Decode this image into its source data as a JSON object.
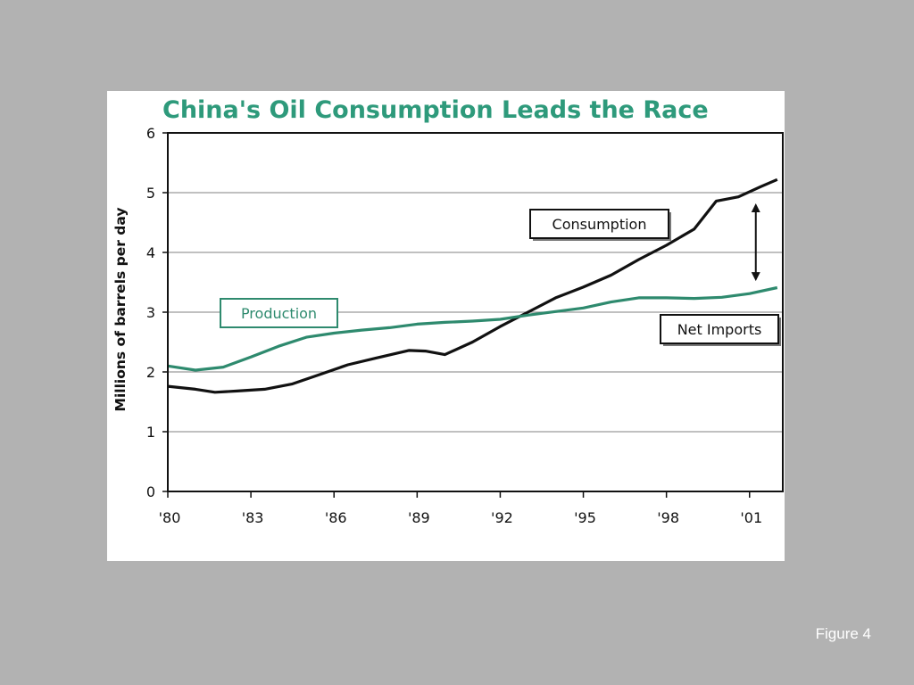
{
  "slide": {
    "caption": "Figure 4"
  },
  "colors": {
    "background": "#b2b2b2",
    "title": "#2e9a7b",
    "consumption": "#111111",
    "production": "#2e8a6e",
    "gridline": "#9a9a9a"
  },
  "chart_data": {
    "type": "line",
    "title": "China's Oil Consumption Leads the Race",
    "ylabel": "Millions of barrels per day",
    "xlabel": "",
    "ylim": [
      0,
      6
    ],
    "xlim": [
      1980,
      2002.2
    ],
    "yticks": [
      "0",
      "1",
      "2",
      "3",
      "4",
      "5",
      "6"
    ],
    "xticks": [
      {
        "year": 1980,
        "label": "'80"
      },
      {
        "year": 1983,
        "label": "'83"
      },
      {
        "year": 1986,
        "label": "'86"
      },
      {
        "year": 1989,
        "label": "'89"
      },
      {
        "year": 1992,
        "label": "'92"
      },
      {
        "year": 1995,
        "label": "'95"
      },
      {
        "year": 1998,
        "label": "'98"
      },
      {
        "year": 2001,
        "label": "'01"
      }
    ],
    "grid": "horizontal",
    "series": [
      {
        "name": "Consumption",
        "color": "#111111",
        "points": [
          [
            1980,
            1.76
          ],
          [
            1981,
            1.71
          ],
          [
            1981.7,
            1.66
          ],
          [
            1982.5,
            1.68
          ],
          [
            1983.5,
            1.71
          ],
          [
            1984.5,
            1.8
          ],
          [
            1985.5,
            1.96
          ],
          [
            1986.5,
            2.12
          ],
          [
            1987.5,
            2.23
          ],
          [
            1988.7,
            2.36
          ],
          [
            1989.3,
            2.35
          ],
          [
            1990,
            2.29
          ],
          [
            1991,
            2.5
          ],
          [
            1992,
            2.76
          ],
          [
            1993,
            3.0
          ],
          [
            1994,
            3.24
          ],
          [
            1995,
            3.42
          ],
          [
            1996,
            3.62
          ],
          [
            1997,
            3.88
          ],
          [
            1998,
            4.12
          ],
          [
            1999,
            4.39
          ],
          [
            1999.8,
            4.86
          ],
          [
            2000.6,
            4.93
          ],
          [
            2001.4,
            5.1
          ],
          [
            2002,
            5.22
          ]
        ]
      },
      {
        "name": "Production",
        "color": "#2e8a6e",
        "points": [
          [
            1980,
            2.1
          ],
          [
            1981,
            2.03
          ],
          [
            1982,
            2.08
          ],
          [
            1983,
            2.25
          ],
          [
            1984,
            2.43
          ],
          [
            1985,
            2.58
          ],
          [
            1986,
            2.65
          ],
          [
            1987,
            2.7
          ],
          [
            1988,
            2.74
          ],
          [
            1989,
            2.8
          ],
          [
            1990,
            2.83
          ],
          [
            1991,
            2.85
          ],
          [
            1992,
            2.88
          ],
          [
            1993,
            2.95
          ],
          [
            1994,
            3.01
          ],
          [
            1995,
            3.07
          ],
          [
            1996,
            3.17
          ],
          [
            1997,
            3.24
          ],
          [
            1998,
            3.24
          ],
          [
            1999,
            3.23
          ],
          [
            2000,
            3.25
          ],
          [
            2001,
            3.31
          ],
          [
            2002,
            3.41
          ]
        ]
      }
    ],
    "annotations": [
      {
        "text": "Consumption",
        "series": "Consumption"
      },
      {
        "text": "Production",
        "series": "Production"
      },
      {
        "text": "Net Imports",
        "note": "double-headed arrow between Consumption and Production near 2001",
        "arrow_year": 2001,
        "arrow_from": 3.52,
        "arrow_to": 4.82
      }
    ]
  }
}
